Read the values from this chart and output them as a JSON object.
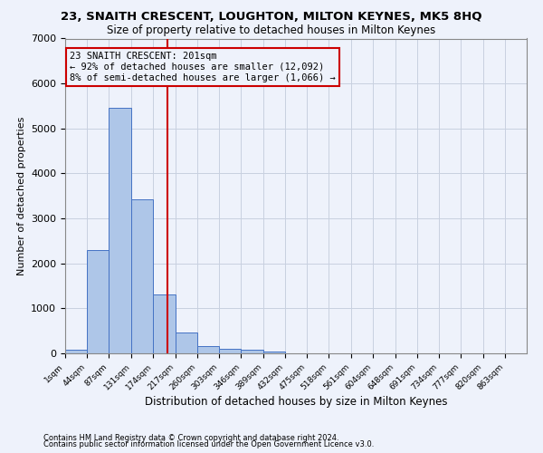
{
  "title": "23, SNAITH CRESCENT, LOUGHTON, MILTON KEYNES, MK5 8HQ",
  "subtitle": "Size of property relative to detached houses in Milton Keynes",
  "xlabel": "Distribution of detached houses by size in Milton Keynes",
  "ylabel": "Number of detached properties",
  "footnote1": "Contains HM Land Registry data © Crown copyright and database right 2024.",
  "footnote2": "Contains public sector information licensed under the Open Government Licence v3.0.",
  "annotation_title": "23 SNAITH CRESCENT: 201sqm",
  "annotation_line1": "← 92% of detached houses are smaller (12,092)",
  "annotation_line2": "8% of semi-detached houses are larger (1,066) →",
  "property_size_sqm": 201,
  "bin_edges": [
    1,
    44,
    87,
    131,
    174,
    217,
    260,
    303,
    346,
    389,
    432,
    475,
    518,
    561,
    604,
    648,
    691,
    734,
    777,
    820,
    863
  ],
  "bin_counts": [
    80,
    2300,
    5460,
    3430,
    1310,
    460,
    160,
    110,
    75,
    50,
    0,
    0,
    0,
    0,
    0,
    0,
    0,
    0,
    0,
    0
  ],
  "bar_color": "#aec6e8",
  "bar_edge_color": "#4472c4",
  "vline_color": "#cc0000",
  "vline_x": 201,
  "annotation_box_color": "#cc0000",
  "background_color": "#eef2fb",
  "ylim": [
    0,
    7000
  ],
  "xlim_min": 1,
  "xlim_max": 906
}
